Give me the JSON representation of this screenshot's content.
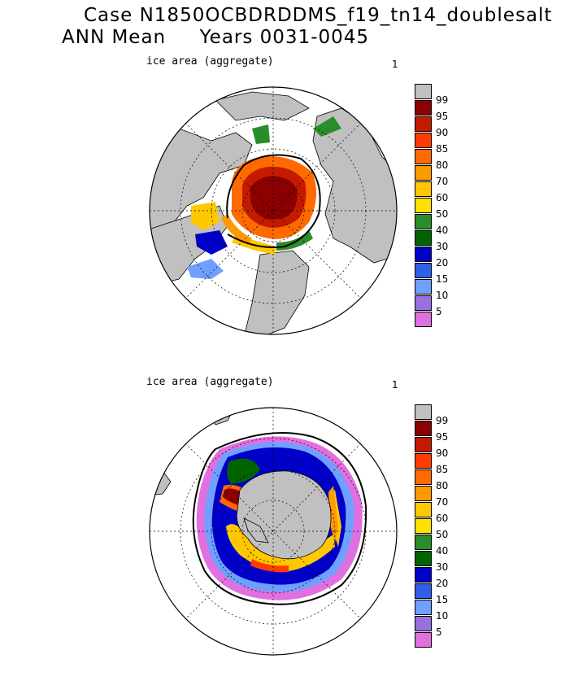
{
  "header": {
    "line1": "Case N1850OCBDRDDMS_f19_tn14_doublesalt",
    "line2": "ANN Mean     Years 0031-0045"
  },
  "panels": [
    {
      "label": "ice area  (aggregate)",
      "number": "1",
      "hemisphere": "north"
    },
    {
      "label": "ice area  (aggregate)",
      "number": "1",
      "hemisphere": "south"
    }
  ],
  "colorbar": {
    "labels": [
      "99",
      "95",
      "90",
      "85",
      "80",
      "70",
      "60",
      "50",
      "40",
      "30",
      "20",
      "15",
      "10",
      "5"
    ],
    "colors": [
      "#c0c0c0",
      "#8b0000",
      "#c41a00",
      "#ff3c00",
      "#ff6a00",
      "#ff9a00",
      "#ffc800",
      "#ffe000",
      "#2a8c2a",
      "#006400",
      "#0000c8",
      "#2f5fe6",
      "#6fa0ff",
      "#9a70e0",
      "#e070e0"
    ]
  },
  "colors": {
    "land": "#c0c0c0",
    "ocean": "#ffffff"
  }
}
